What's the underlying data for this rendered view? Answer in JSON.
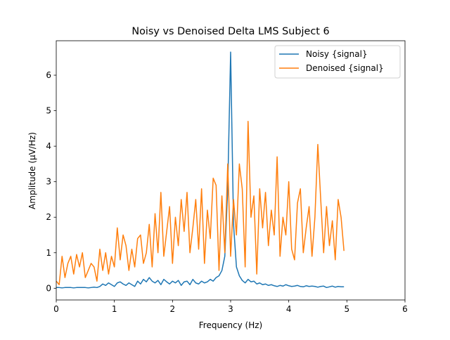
{
  "chart_data": {
    "type": "line",
    "title": "Noisy vs Denoised Delta LMS Subject 6",
    "x_label": "Frequency (Hz)",
    "y_label": "Amplitude (μV/Hz)",
    "xlim": [
      0,
      6
    ],
    "ylim": [
      -0.33,
      6.97
    ],
    "xticks": [
      0,
      1,
      2,
      3,
      4,
      5,
      6
    ],
    "yticks": [
      0,
      1,
      2,
      3,
      4,
      5,
      6
    ],
    "legend": "upper right",
    "grid": false,
    "x": [
      0,
      0.05,
      0.1,
      0.15,
      0.2,
      0.25,
      0.3,
      0.35,
      0.4,
      0.45,
      0.5,
      0.55,
      0.6,
      0.65,
      0.7,
      0.75,
      0.8,
      0.85,
      0.9,
      0.95,
      1,
      1.05,
      1.1,
      1.15,
      1.2,
      1.25,
      1.3,
      1.35,
      1.4,
      1.45,
      1.5,
      1.55,
      1.6,
      1.65,
      1.7,
      1.75,
      1.8,
      1.85,
      1.9,
      1.95,
      2,
      2.05,
      2.1,
      2.15,
      2.2,
      2.25,
      2.3,
      2.35,
      2.4,
      2.45,
      2.5,
      2.55,
      2.6,
      2.65,
      2.7,
      2.75,
      2.8,
      2.85,
      2.9,
      2.95,
      3,
      3.05,
      3.1,
      3.15,
      3.2,
      3.25,
      3.3,
      3.35,
      3.4,
      3.45,
      3.5,
      3.55,
      3.6,
      3.65,
      3.7,
      3.75,
      3.8,
      3.85,
      3.9,
      3.95,
      4,
      4.05,
      4.1,
      4.15,
      4.2,
      4.25,
      4.3,
      4.35,
      4.4,
      4.45,
      4.5,
      4.55,
      4.6,
      4.65,
      4.7,
      4.75,
      4.8,
      4.85,
      4.9,
      4.95
    ],
    "series": [
      {
        "name": "Noisy {signal}",
        "color": "#1f77b4",
        "values": [
          0.02,
          0.02,
          0.01,
          0.02,
          0.02,
          0.02,
          0.01,
          0.02,
          0.02,
          0.02,
          0.02,
          0.01,
          0.02,
          0.03,
          0.02,
          0.05,
          0.12,
          0.08,
          0.15,
          0.1,
          0.05,
          0.15,
          0.18,
          0.12,
          0.08,
          0.15,
          0.1,
          0.05,
          0.2,
          0.12,
          0.25,
          0.18,
          0.3,
          0.2,
          0.15,
          0.22,
          0.1,
          0.25,
          0.18,
          0.12,
          0.2,
          0.15,
          0.22,
          0.08,
          0.18,
          0.2,
          0.1,
          0.25,
          0.15,
          0.12,
          0.2,
          0.15,
          0.18,
          0.25,
          0.2,
          0.3,
          0.35,
          0.5,
          0.9,
          2.8,
          6.65,
          1.8,
          0.6,
          0.35,
          0.22,
          0.15,
          0.25,
          0.18,
          0.2,
          0.12,
          0.15,
          0.1,
          0.12,
          0.08,
          0.1,
          0.07,
          0.05,
          0.08,
          0.06,
          0.1,
          0.07,
          0.05,
          0.06,
          0.08,
          0.05,
          0.04,
          0.07,
          0.05,
          0.06,
          0.05,
          0.03,
          0.05,
          0.06,
          0.02,
          0.04,
          0.06,
          0.03,
          0.05,
          0.04,
          0.04
        ]
      },
      {
        "name": "Denoised {signal}",
        "color": "#ff7f0e",
        "values": [
          0.2,
          0.1,
          0.9,
          0.3,
          0.7,
          0.9,
          0.4,
          0.95,
          0.6,
          1.0,
          0.3,
          0.5,
          0.7,
          0.6,
          0.2,
          1.1,
          0.5,
          1.0,
          0.4,
          0.9,
          0.6,
          1.7,
          0.8,
          1.5,
          1.2,
          0.5,
          1.1,
          0.6,
          1.4,
          1.5,
          0.7,
          1.0,
          1.8,
          0.6,
          2.1,
          1.0,
          2.7,
          0.9,
          1.6,
          2.3,
          0.7,
          2.0,
          1.2,
          2.5,
          1.6,
          2.7,
          1.0,
          1.7,
          2.5,
          1.1,
          2.8,
          0.7,
          2.2,
          1.4,
          3.1,
          2.9,
          0.5,
          2.6,
          1.0,
          3.5,
          0.9,
          2.5,
          1.5,
          3.5,
          2.8,
          0.6,
          4.7,
          2.0,
          2.6,
          0.4,
          2.8,
          1.7,
          2.7,
          1.2,
          2.2,
          1.5,
          3.7,
          0.9,
          2.0,
          1.5,
          3.0,
          1.1,
          0.8,
          2.4,
          2.8,
          1.0,
          1.7,
          2.3,
          0.9,
          2.0,
          4.05,
          2.5,
          1.0,
          2.3,
          1.2,
          1.9,
          0.8,
          2.5,
          2.0,
          1.05
        ]
      }
    ]
  }
}
